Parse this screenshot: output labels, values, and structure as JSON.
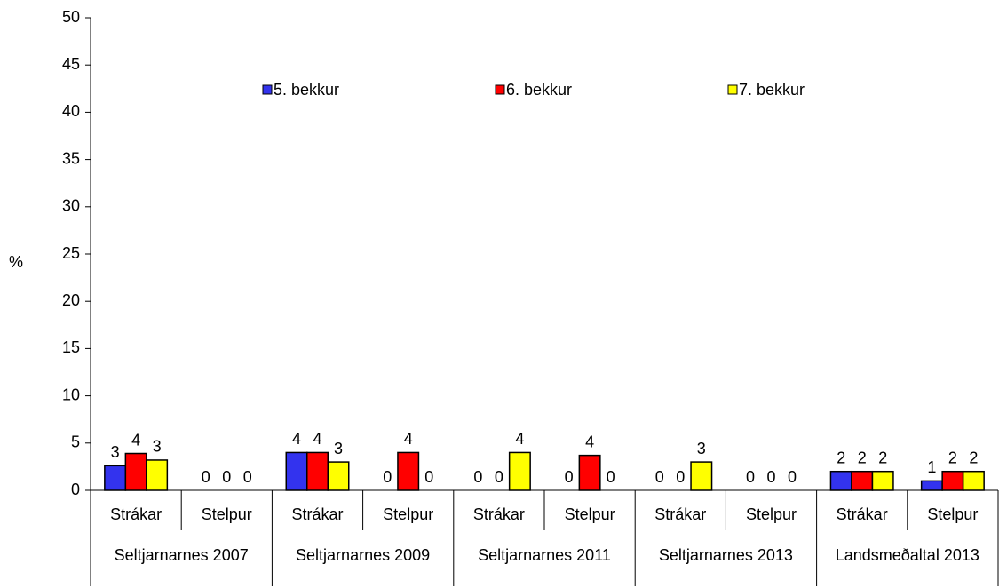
{
  "chart_data": {
    "type": "bar",
    "y_label": "%",
    "categories": [
      "Strákar",
      "Stelpur",
      "Strákar",
      "Stelpur",
      "Strákar",
      "Stelpur",
      "Strákar",
      "Stelpur",
      "Strákar",
      "Stelpur"
    ],
    "groups": [
      "Seltjarnarnes 2007",
      "Seltjarnarnes 2009",
      "Seltjarnarnes 2011",
      "Seltjarnarnes 2013",
      "Landsmeðaltal 2013"
    ],
    "series": [
      {
        "name": "5. bekkur",
        "color": "#3333ee",
        "values": [
          2.6,
          0,
          4.0,
          0,
          0,
          0,
          0,
          0,
          2.0,
          1.0
        ],
        "value_labels": [
          "3",
          "0",
          "4",
          "0",
          "0",
          "0",
          "0",
          "0",
          "2",
          "1"
        ]
      },
      {
        "name": "6. bekkur",
        "color": "#ff0000",
        "values": [
          3.9,
          0,
          4.0,
          4.0,
          0,
          3.7,
          0,
          0,
          2.0,
          2.0
        ],
        "value_labels": [
          "4",
          "0",
          "4",
          "4",
          "0",
          "4",
          "0",
          "0",
          "2",
          "2"
        ]
      },
      {
        "name": "7. bekkur",
        "color": "#ffff00",
        "values": [
          3.2,
          0,
          3.0,
          0,
          4.0,
          0,
          3.0,
          0,
          2.0,
          2.0
        ],
        "value_labels": [
          "3",
          "0",
          "3",
          "0",
          "4",
          "0",
          "3",
          "0",
          "2",
          "2"
        ]
      }
    ],
    "ylim": [
      0,
      50
    ],
    "yticks": [
      0,
      5,
      10,
      15,
      20,
      25,
      30,
      35,
      40,
      45,
      50
    ],
    "legend": "top"
  }
}
